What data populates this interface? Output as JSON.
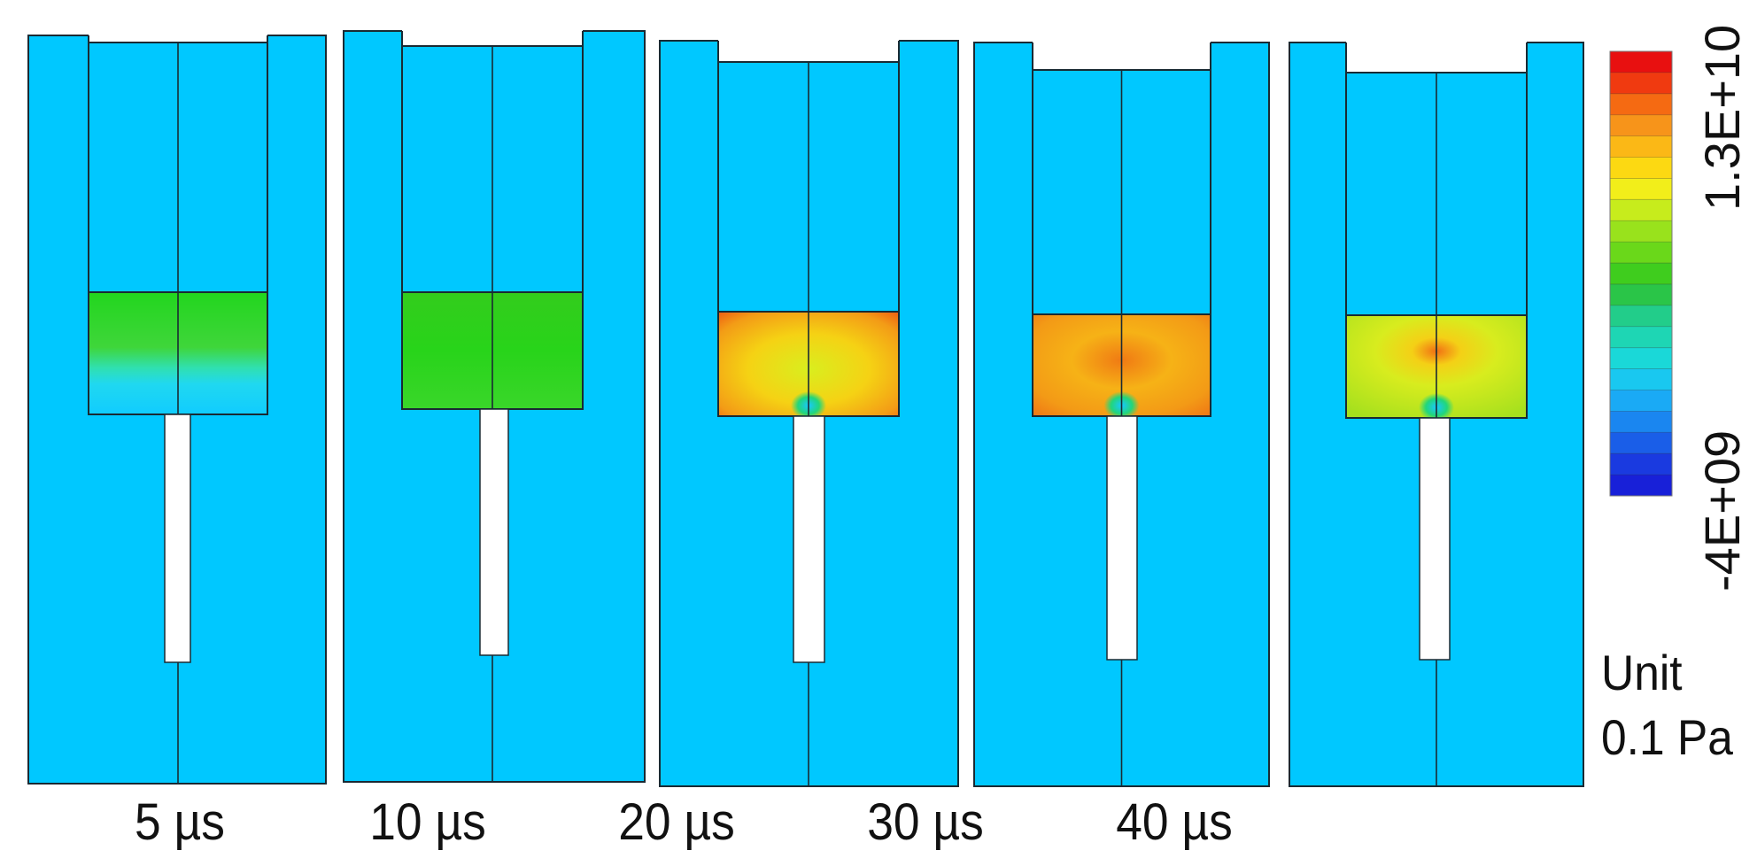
{
  "colors": {
    "background_material": "#00c8ff",
    "outline": "#1a2a33",
    "cavity": "#ffffff"
  },
  "panels": [
    {
      "time_label": "5 µs",
      "stress_state": "green-band-fading-to-cyan"
    },
    {
      "time_label": "10 µs",
      "stress_state": "green"
    },
    {
      "time_label": "20 µs",
      "stress_state": "orange-yellow"
    },
    {
      "time_label": "30 µs",
      "stress_state": "orange"
    },
    {
      "time_label": "40 µs",
      "stress_state": "yellow-green"
    }
  ],
  "colorbar": {
    "max_label": "1.3E+10",
    "min_label": "-4E+09",
    "colors": [
      "#e81010",
      "#f03a10",
      "#f56a12",
      "#f7941a",
      "#fbb816",
      "#fcd912",
      "#f2ee1a",
      "#c7ec1c",
      "#99e21c",
      "#6ad81a",
      "#3fcd1e",
      "#2ac548",
      "#22cd8a",
      "#1ed6b4",
      "#1ad8d8",
      "#19c8f0",
      "#1aaaf5",
      "#1a86f0",
      "#1a5ee8",
      "#1a3ae0",
      "#1820d8"
    ]
  },
  "unit": {
    "line1": "Unit",
    "line2": "0.1 Pa"
  }
}
